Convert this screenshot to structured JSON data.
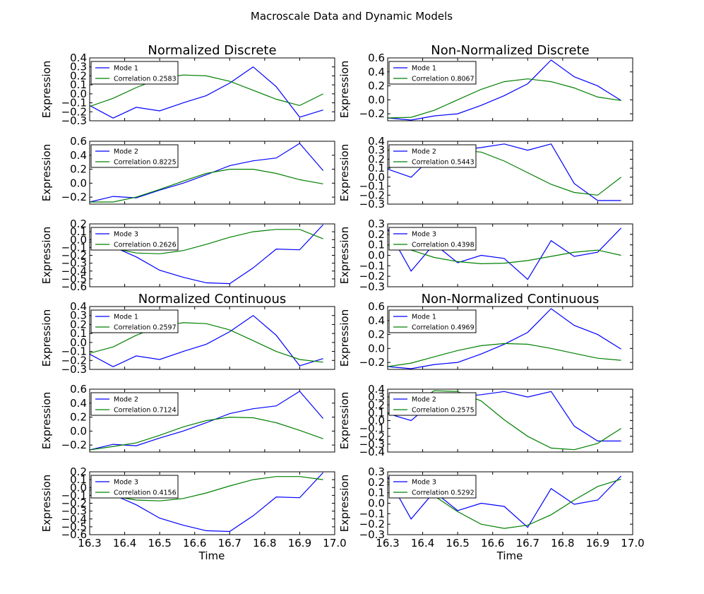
{
  "figure": {
    "title": "Macroscale Data and Dynamic Models",
    "x_axis_label": "Time"
  },
  "chart_data": [
    {
      "type": "line",
      "title": "Normalized Discrete",
      "ylabel": "Expression",
      "ylim": [
        -0.3,
        0.4
      ],
      "yticks": [
        0.4,
        0.3,
        0.2,
        0.1,
        0.0,
        -0.1,
        -0.2,
        -0.3
      ],
      "xlim": [
        16.3,
        17.0
      ],
      "xticks": [
        16.3,
        16.4,
        16.5,
        16.6,
        16.7,
        16.8,
        16.9,
        17.0
      ],
      "show_xticks": false,
      "x": [
        16.3,
        16.367,
        16.433,
        16.5,
        16.567,
        16.633,
        16.7,
        16.767,
        16.833,
        16.9,
        16.967
      ],
      "series": [
        {
          "name": "Mode 1",
          "color": "#0000ff",
          "values": [
            -0.13,
            -0.27,
            -0.15,
            -0.19,
            -0.1,
            -0.02,
            0.12,
            0.3,
            0.08,
            -0.26,
            -0.18
          ]
        },
        {
          "name": "Correlation 0.2583",
          "color": "#008000",
          "values": [
            -0.14,
            -0.05,
            0.07,
            0.17,
            0.21,
            0.2,
            0.14,
            0.04,
            -0.06,
            -0.13,
            0.0
          ]
        }
      ]
    },
    {
      "type": "line",
      "title": "Non-Normalized Discrete",
      "ylabel": "Expression",
      "ylim": [
        -0.3,
        0.6
      ],
      "yticks": [
        0.6,
        0.4,
        0.2,
        0.0,
        -0.2
      ],
      "xlim": [
        16.3,
        17.0
      ],
      "xticks": [
        16.3,
        16.4,
        16.5,
        16.6,
        16.7,
        16.8,
        16.9,
        17.0
      ],
      "show_xticks": false,
      "x": [
        16.3,
        16.367,
        16.433,
        16.5,
        16.567,
        16.633,
        16.7,
        16.767,
        16.833,
        16.9,
        16.967
      ],
      "series": [
        {
          "name": "Mode 1",
          "color": "#0000ff",
          "values": [
            -0.26,
            -0.29,
            -0.23,
            -0.2,
            -0.08,
            0.06,
            0.23,
            0.57,
            0.33,
            0.2,
            -0.01
          ]
        },
        {
          "name": "Correlation 0.8067",
          "color": "#008000",
          "values": [
            -0.26,
            -0.25,
            -0.15,
            0.0,
            0.15,
            0.26,
            0.3,
            0.26,
            0.17,
            0.04,
            -0.01
          ]
        }
      ]
    },
    {
      "type": "line",
      "title": "",
      "ylabel": "Expression",
      "ylim": [
        -0.3,
        0.6
      ],
      "yticks": [
        0.6,
        0.4,
        0.2,
        0.0,
        -0.2
      ],
      "xlim": [
        16.3,
        17.0
      ],
      "xticks": [
        16.3,
        16.4,
        16.5,
        16.6,
        16.7,
        16.8,
        16.9,
        17.0
      ],
      "show_xticks": false,
      "x": [
        16.3,
        16.367,
        16.433,
        16.5,
        16.567,
        16.633,
        16.7,
        16.767,
        16.833,
        16.9,
        16.967
      ],
      "series": [
        {
          "name": "Mode 2",
          "color": "#0000ff",
          "values": [
            -0.27,
            -0.19,
            -0.21,
            -0.1,
            0.0,
            0.12,
            0.25,
            0.32,
            0.36,
            0.57,
            0.18
          ]
        },
        {
          "name": "Correlation 0.8225",
          "color": "#008000",
          "values": [
            -0.27,
            -0.27,
            -0.2,
            -0.09,
            0.03,
            0.14,
            0.2,
            0.2,
            0.14,
            0.05,
            -0.01
          ]
        }
      ]
    },
    {
      "type": "line",
      "title": "",
      "ylabel": "Expression",
      "ylim": [
        -0.3,
        0.4
      ],
      "yticks": [
        0.4,
        0.3,
        0.2,
        0.1,
        0.0,
        -0.1,
        -0.2,
        -0.3
      ],
      "xlim": [
        16.3,
        17.0
      ],
      "xticks": [
        16.3,
        16.4,
        16.5,
        16.6,
        16.7,
        16.8,
        16.9,
        17.0
      ],
      "show_xticks": false,
      "x": [
        16.3,
        16.367,
        16.433,
        16.5,
        16.567,
        16.633,
        16.7,
        16.767,
        16.833,
        16.9,
        16.967
      ],
      "series": [
        {
          "name": "Mode 2",
          "color": "#0000ff",
          "values": [
            0.09,
            0.0,
            0.25,
            0.3,
            0.33,
            0.37,
            0.3,
            0.37,
            -0.07,
            -0.26,
            -0.26
          ]
        },
        {
          "name": "Correlation 0.5443",
          "color": "#008000",
          "values": [
            0.1,
            0.2,
            0.27,
            0.3,
            0.28,
            0.18,
            0.05,
            -0.08,
            -0.17,
            -0.2,
            0.0
          ]
        }
      ]
    },
    {
      "type": "line",
      "title": "",
      "ylabel": "Expression",
      "ylim": [
        -0.6,
        0.2
      ],
      "yticks": [
        0.2,
        0.1,
        0.0,
        -0.1,
        -0.2,
        -0.3,
        -0.4,
        -0.5,
        -0.6
      ],
      "xlim": [
        16.3,
        17.0
      ],
      "xticks": [
        16.3,
        16.4,
        16.5,
        16.6,
        16.7,
        16.8,
        16.9,
        17.0
      ],
      "show_xticks": false,
      "x": [
        16.3,
        16.367,
        16.433,
        16.5,
        16.567,
        16.633,
        16.7,
        16.767,
        16.833,
        16.9,
        16.967
      ],
      "series": [
        {
          "name": "Mode 3",
          "color": "#0000ff",
          "values": [
            0.0,
            -0.09,
            -0.22,
            -0.39,
            -0.48,
            -0.55,
            -0.56,
            -0.36,
            -0.12,
            -0.13,
            0.19
          ]
        },
        {
          "name": "Correlation 0.2626",
          "color": "#008000",
          "values": [
            -0.03,
            -0.11,
            -0.17,
            -0.18,
            -0.14,
            -0.06,
            0.03,
            0.1,
            0.13,
            0.13,
            0.01
          ]
        }
      ]
    },
    {
      "type": "line",
      "title": "",
      "ylabel": "Expression",
      "ylim": [
        -0.3,
        0.3
      ],
      "yticks": [
        0.3,
        0.2,
        0.1,
        0.0,
        -0.1,
        -0.2,
        -0.3
      ],
      "xlim": [
        16.3,
        17.0
      ],
      "xticks": [
        16.3,
        16.4,
        16.5,
        16.6,
        16.7,
        16.8,
        16.9,
        17.0
      ],
      "show_xticks": false,
      "x": [
        16.3,
        16.367,
        16.433,
        16.5,
        16.567,
        16.633,
        16.7,
        16.767,
        16.833,
        16.9,
        16.967
      ],
      "series": [
        {
          "name": "Mode 3",
          "color": "#0000ff",
          "values": [
            0.25,
            -0.15,
            0.11,
            -0.07,
            0.0,
            -0.03,
            -0.23,
            0.14,
            -0.01,
            0.03,
            0.26
          ]
        },
        {
          "name": "Correlation 0.4398",
          "color": "#008000",
          "values": [
            0.1,
            0.05,
            -0.02,
            -0.06,
            -0.08,
            -0.075,
            -0.05,
            -0.01,
            0.03,
            0.05,
            0.0
          ]
        }
      ]
    },
    {
      "type": "line",
      "title": "Normalized Continuous",
      "ylabel": "Expression",
      "ylim": [
        -0.3,
        0.4
      ],
      "yticks": [
        0.4,
        0.3,
        0.2,
        0.1,
        0.0,
        -0.1,
        -0.2,
        -0.3
      ],
      "xlim": [
        16.3,
        17.0
      ],
      "xticks": [
        16.3,
        16.4,
        16.5,
        16.6,
        16.7,
        16.8,
        16.9,
        17.0
      ],
      "show_xticks": false,
      "x": [
        16.3,
        16.367,
        16.433,
        16.5,
        16.567,
        16.633,
        16.7,
        16.767,
        16.833,
        16.9,
        16.967
      ],
      "series": [
        {
          "name": "Mode 1",
          "color": "#0000ff",
          "values": [
            -0.13,
            -0.27,
            -0.15,
            -0.19,
            -0.1,
            -0.02,
            0.12,
            0.3,
            0.08,
            -0.26,
            -0.18
          ]
        },
        {
          "name": "Correlation 0.2597",
          "color": "#008000",
          "values": [
            -0.12,
            -0.05,
            0.08,
            0.18,
            0.22,
            0.21,
            0.14,
            0.02,
            -0.1,
            -0.19,
            -0.22
          ]
        }
      ]
    },
    {
      "type": "line",
      "title": "Non-Normalized Continuous",
      "ylabel": "Expression",
      "ylim": [
        -0.3,
        0.6
      ],
      "yticks": [
        0.6,
        0.4,
        0.2,
        0.0,
        -0.2
      ],
      "xlim": [
        16.3,
        17.0
      ],
      "xticks": [
        16.3,
        16.4,
        16.5,
        16.6,
        16.7,
        16.8,
        16.9,
        17.0
      ],
      "show_xticks": false,
      "x": [
        16.3,
        16.367,
        16.433,
        16.5,
        16.567,
        16.633,
        16.7,
        16.767,
        16.833,
        16.9,
        16.967
      ],
      "series": [
        {
          "name": "Mode 1",
          "color": "#0000ff",
          "values": [
            -0.26,
            -0.29,
            -0.23,
            -0.2,
            -0.08,
            0.06,
            0.23,
            0.57,
            0.33,
            0.2,
            -0.01
          ]
        },
        {
          "name": "Correlation 0.4969",
          "color": "#008000",
          "values": [
            -0.26,
            -0.21,
            -0.12,
            -0.03,
            0.04,
            0.07,
            0.06,
            0.0,
            -0.07,
            -0.14,
            -0.17
          ]
        }
      ]
    },
    {
      "type": "line",
      "title": "",
      "ylabel": "Expression",
      "ylim": [
        -0.3,
        0.6
      ],
      "yticks": [
        0.6,
        0.4,
        0.2,
        0.0,
        -0.2
      ],
      "xlim": [
        16.3,
        17.0
      ],
      "xticks": [
        16.3,
        16.4,
        16.5,
        16.6,
        16.7,
        16.8,
        16.9,
        17.0
      ],
      "show_xticks": false,
      "x": [
        16.3,
        16.367,
        16.433,
        16.5,
        16.567,
        16.633,
        16.7,
        16.767,
        16.833,
        16.9,
        16.967
      ],
      "series": [
        {
          "name": "Mode 2",
          "color": "#0000ff",
          "values": [
            -0.27,
            -0.19,
            -0.21,
            -0.1,
            0.0,
            0.12,
            0.25,
            0.32,
            0.36,
            0.57,
            0.18
          ]
        },
        {
          "name": "Correlation 0.7124",
          "color": "#008000",
          "values": [
            -0.27,
            -0.22,
            -0.17,
            -0.06,
            0.06,
            0.15,
            0.2,
            0.19,
            0.12,
            0.01,
            -0.11
          ]
        }
      ]
    },
    {
      "type": "line",
      "title": "",
      "ylabel": "Expression",
      "ylim": [
        -0.4,
        0.4
      ],
      "yticks": [
        0.4,
        0.3,
        0.2,
        0.1,
        0.0,
        -0.1,
        -0.2,
        -0.3,
        -0.4
      ],
      "xlim": [
        16.3,
        17.0
      ],
      "xticks": [
        16.3,
        16.4,
        16.5,
        16.6,
        16.7,
        16.8,
        16.9,
        17.0
      ],
      "show_xticks": false,
      "x": [
        16.3,
        16.367,
        16.433,
        16.5,
        16.567,
        16.633,
        16.7,
        16.767,
        16.833,
        16.9,
        16.967
      ],
      "series": [
        {
          "name": "Mode 2",
          "color": "#0000ff",
          "values": [
            0.09,
            0.0,
            0.25,
            0.3,
            0.33,
            0.37,
            0.3,
            0.37,
            -0.07,
            -0.26,
            -0.26
          ]
        },
        {
          "name": "Correlation 0.2575",
          "color": "#008000",
          "values": [
            0.09,
            0.2,
            0.38,
            0.37,
            0.25,
            0.01,
            -0.2,
            -0.35,
            -0.37,
            -0.29,
            -0.1
          ]
        }
      ]
    },
    {
      "type": "line",
      "title": "",
      "ylabel": "Expression",
      "ylim": [
        -0.6,
        0.2
      ],
      "yticks": [
        0.2,
        0.1,
        0.0,
        -0.1,
        -0.2,
        -0.3,
        -0.4,
        -0.5,
        -0.6
      ],
      "xlim": [
        16.3,
        17.0
      ],
      "xticks": [
        16.3,
        16.4,
        16.5,
        16.6,
        16.7,
        16.8,
        16.9,
        17.0
      ],
      "show_xticks": true,
      "x": [
        16.3,
        16.367,
        16.433,
        16.5,
        16.567,
        16.633,
        16.7,
        16.767,
        16.833,
        16.9,
        16.967
      ],
      "series": [
        {
          "name": "Mode 3",
          "color": "#0000ff",
          "values": [
            0.0,
            -0.09,
            -0.22,
            -0.39,
            -0.48,
            -0.55,
            -0.56,
            -0.36,
            -0.12,
            -0.13,
            0.19
          ]
        },
        {
          "name": "Correlation 0.4156",
          "color": "#008000",
          "values": [
            -0.03,
            -0.11,
            -0.16,
            -0.17,
            -0.14,
            -0.07,
            0.02,
            0.1,
            0.14,
            0.14,
            0.1
          ]
        }
      ]
    },
    {
      "type": "line",
      "title": "",
      "ylabel": "Expression",
      "ylim": [
        -0.3,
        0.3
      ],
      "yticks": [
        0.3,
        0.2,
        0.1,
        0.0,
        -0.1,
        -0.2,
        -0.3
      ],
      "xlim": [
        16.3,
        17.0
      ],
      "xticks": [
        16.3,
        16.4,
        16.5,
        16.6,
        16.7,
        16.8,
        16.9,
        17.0
      ],
      "show_xticks": true,
      "x": [
        16.3,
        16.367,
        16.433,
        16.5,
        16.567,
        16.633,
        16.7,
        16.767,
        16.833,
        16.9,
        16.967
      ],
      "series": [
        {
          "name": "Mode 3",
          "color": "#0000ff",
          "values": [
            0.25,
            -0.15,
            0.11,
            -0.07,
            0.0,
            -0.03,
            -0.23,
            0.14,
            -0.01,
            0.03,
            0.26
          ]
        },
        {
          "name": "Correlation 0.5292",
          "color": "#008000",
          "values": [
            0.18,
            0.11,
            0.07,
            -0.08,
            -0.2,
            -0.24,
            -0.21,
            -0.11,
            0.03,
            0.16,
            0.23
          ]
        }
      ]
    }
  ]
}
